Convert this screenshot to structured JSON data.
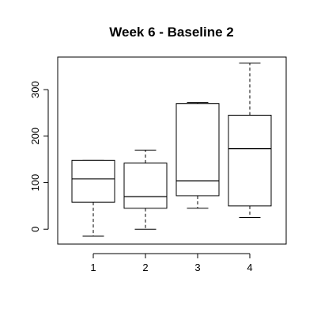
{
  "chart_data": {
    "type": "box",
    "title": "Week 6 - Baseline 2",
    "xlabel": "",
    "ylabel": "",
    "categories": [
      "1",
      "2",
      "3",
      "4"
    ],
    "ylim": [
      -32,
      370
    ],
    "yticks": [
      0,
      100,
      200,
      300
    ],
    "boxes": [
      {
        "label": "1",
        "min": -15,
        "q1": 58,
        "median": 108,
        "q3": 148,
        "max": 148
      },
      {
        "label": "2",
        "min": 0,
        "q1": 45,
        "median": 70,
        "q3": 142,
        "max": 170
      },
      {
        "label": "3",
        "min": 45,
        "q1": 72,
        "median": 104,
        "q3": 270,
        "max": 272
      },
      {
        "label": "4",
        "min": 25,
        "q1": 50,
        "median": 173,
        "q3": 245,
        "max": 357
      }
    ],
    "grid": false,
    "colors": {
      "stroke": "#000000",
      "background": "#ffffff"
    }
  }
}
